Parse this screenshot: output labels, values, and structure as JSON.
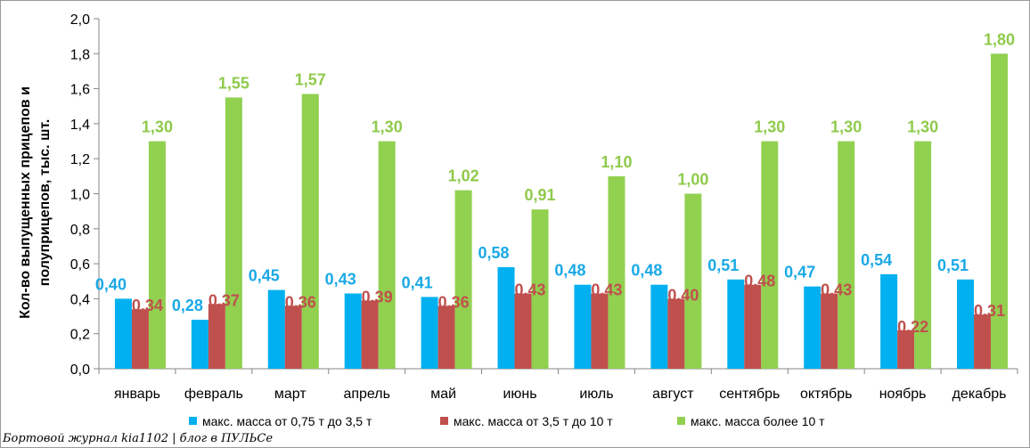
{
  "chart_data": {
    "type": "bar",
    "ylabel": "Кол-во выпущенных прицепов и полуприцепов, тыс. шт.",
    "ylim": [
      0,
      2.0
    ],
    "yticks": [
      "0,0",
      "0,2",
      "0,4",
      "0,6",
      "0,8",
      "1,0",
      "1,2",
      "1,4",
      "1,6",
      "1,8",
      "2,0"
    ],
    "grid": false,
    "legend_position": "bottom",
    "categories": [
      "январь",
      "февраль",
      "март",
      "апрель",
      "май",
      "июнь",
      "июль",
      "август",
      "сентябрь",
      "октябрь",
      "ноябрь",
      "декабрь"
    ],
    "series": [
      {
        "name": "макс. масса от 0,75 т до 3,5 т",
        "color": "#00b0f0",
        "label_color": "#1aa9e6",
        "values": [
          0.4,
          0.28,
          0.45,
          0.43,
          0.41,
          0.58,
          0.48,
          0.48,
          0.51,
          0.47,
          0.54,
          0.51
        ],
        "labels": [
          "0,40",
          "0,28",
          "0,45",
          "0,43",
          "0,41",
          "0,58",
          "0,48",
          "0,48",
          "0,51",
          "0,47",
          "0,54",
          "0,51"
        ]
      },
      {
        "name": "макс. масса от 3,5 т до 10 т",
        "color": "#c0504d",
        "label_color": "#c0504d",
        "values": [
          0.34,
          0.37,
          0.36,
          0.39,
          0.36,
          0.43,
          0.43,
          0.4,
          0.48,
          0.43,
          0.22,
          0.31
        ],
        "labels": [
          "0,34",
          "0,37",
          "0,36",
          "0,39",
          "0,36",
          "0,43",
          "0,43",
          "0,40",
          "0,48",
          "0,43",
          "0,22",
          "0,31"
        ]
      },
      {
        "name": "макс. масса более 10 т",
        "color": "#92d050",
        "label_color": "#8fca4c",
        "values": [
          1.3,
          1.55,
          1.57,
          1.3,
          1.02,
          0.91,
          1.1,
          1.0,
          1.3,
          1.3,
          1.3,
          1.8
        ],
        "labels": [
          "1,30",
          "1,55",
          "1,57",
          "1,30",
          "1,02",
          "0,91",
          "1,10",
          "1,00",
          "1,30",
          "1,30",
          "1,30",
          "1,80"
        ]
      }
    ]
  },
  "watermark": "Бортовой журнал kia1102 | блог в ПУЛЬСе"
}
